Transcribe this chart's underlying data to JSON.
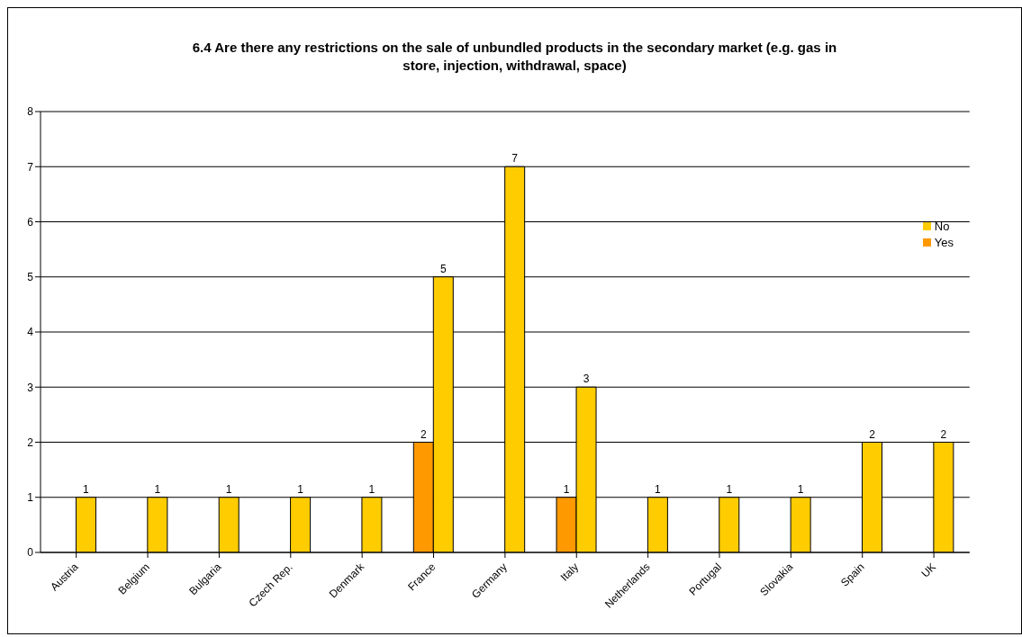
{
  "chart_data": {
    "type": "bar",
    "title": "6.4 Are there any restrictions on the sale of unbundled products in the secondary market (e.g. gas in store, injection, withdrawal, space)",
    "categories": [
      "Austria",
      "Belgium",
      "Bulgaria",
      "Czech Rep.",
      "Denmark",
      "France",
      "Germany",
      "Italy",
      "Netherlands",
      "Portugal",
      "Slovakia",
      "Spain",
      "UK"
    ],
    "series": [
      {
        "name": "Yes",
        "color": "#ff9900",
        "values": [
          null,
          null,
          null,
          null,
          null,
          2,
          null,
          1,
          null,
          null,
          null,
          null,
          null
        ]
      },
      {
        "name": "No",
        "color": "#ffcc00",
        "values": [
          1,
          1,
          1,
          1,
          1,
          5,
          7,
          3,
          1,
          1,
          1,
          2,
          2
        ]
      }
    ],
    "ylim": [
      0,
      8
    ],
    "yticks": [
      0,
      1,
      2,
      3,
      4,
      5,
      6,
      7,
      8
    ],
    "grid": "y",
    "legend": "top right",
    "data_labels": true
  }
}
